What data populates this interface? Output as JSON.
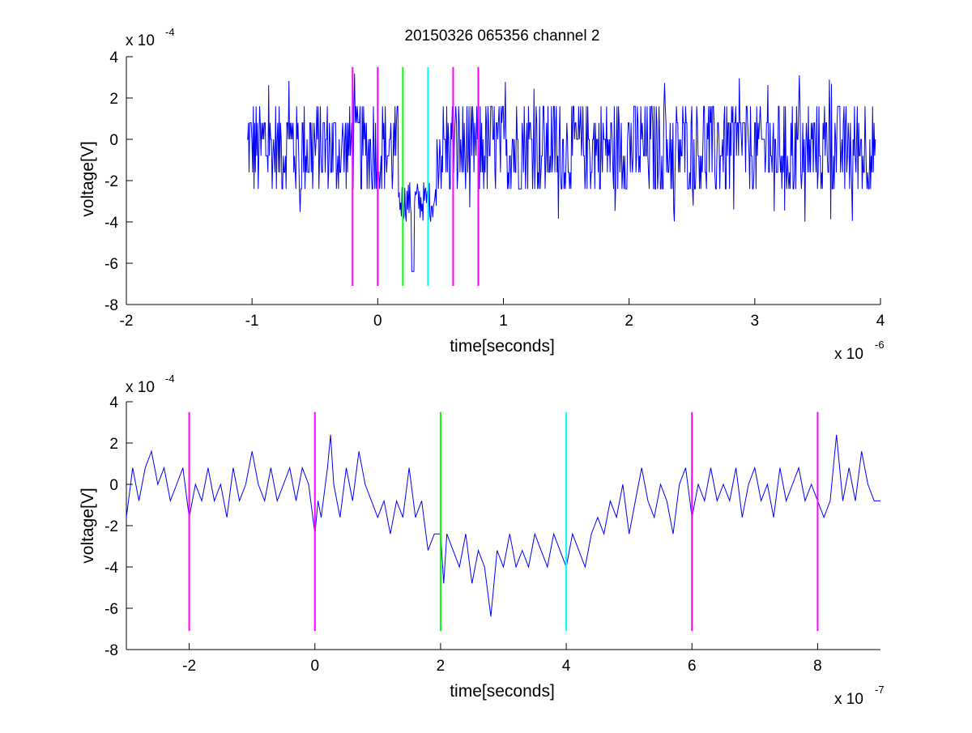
{
  "chart_data": [
    {
      "type": "line",
      "title": "20150326 065356 channel 2",
      "xlabel": "time[seconds]",
      "ylabel": "voltage[V]",
      "x_multiplier": "x 10",
      "x_multiplier_exp": "-6",
      "y_multiplier": "x 10",
      "y_multiplier_exp": "-4",
      "xlim": [
        -2,
        4
      ],
      "ylim": [
        -8,
        4
      ],
      "xticks": [
        "-2",
        "-1",
        "0",
        "1",
        "2",
        "3",
        "4"
      ],
      "yticks": [
        "-8",
        "-6",
        "-4",
        "-2",
        "0",
        "2",
        "4"
      ],
      "grid": false,
      "line_color": "#0000ff",
      "markers": [
        {
          "x": -0.2,
          "color": "#ff00ff",
          "y_range": [
            -7.1,
            3.5
          ]
        },
        {
          "x": 0.0,
          "color": "#ff00ff",
          "y_range": [
            -7.1,
            3.5
          ]
        },
        {
          "x": 0.2,
          "color": "#00ff00",
          "y_range": [
            -7.1,
            3.5
          ]
        },
        {
          "x": 0.4,
          "color": "#00ffff",
          "y_range": [
            -7.1,
            3.5
          ]
        },
        {
          "x": 0.6,
          "color": "#ff00ff",
          "y_range": [
            -7.1,
            3.5
          ]
        },
        {
          "x": 0.8,
          "color": "#ff00ff",
          "y_range": [
            -7.1,
            3.5
          ]
        }
      ],
      "series": [
        {
          "x_range": [
            -1.04,
            3.96
          ],
          "baseline": -0.7,
          "noise_levels": [
            -2.4,
            -1.6,
            -0.8,
            0,
            0.8,
            1.6
          ],
          "dip": {
            "x_range": [
              0.16,
              0.46
            ],
            "level": -3.0,
            "min": -6.4
          }
        }
      ]
    },
    {
      "type": "line",
      "title": "",
      "xlabel": "time[seconds]",
      "ylabel": "voltage[V]",
      "x_multiplier": "x 10",
      "x_multiplier_exp": "-7",
      "y_multiplier": "x 10",
      "y_multiplier_exp": "-4",
      "xlim": [
        -3,
        9
      ],
      "ylim": [
        -8,
        4
      ],
      "xticks": [
        "-2",
        "0",
        "2",
        "4",
        "6",
        "8"
      ],
      "xtick_values": [
        -2,
        0,
        2,
        4,
        6,
        8
      ],
      "yticks": [
        "-8",
        "-6",
        "-4",
        "-2",
        "0",
        "2",
        "4"
      ],
      "grid": false,
      "line_color": "#0000ff",
      "markers": [
        {
          "x": -2,
          "color": "#ff00ff",
          "y_range": [
            -7.1,
            3.5
          ]
        },
        {
          "x": 0,
          "color": "#ff00ff",
          "y_range": [
            -7.1,
            3.5
          ]
        },
        {
          "x": 2,
          "color": "#00ff00",
          "y_range": [
            -7.1,
            3.5
          ]
        },
        {
          "x": 4,
          "color": "#00ffff",
          "y_range": [
            -7.1,
            3.5
          ]
        },
        {
          "x": 6,
          "color": "#ff00ff",
          "y_range": [
            -7.1,
            3.5
          ]
        },
        {
          "x": 8,
          "color": "#ff00ff",
          "y_range": [
            -7.1,
            3.5
          ]
        }
      ],
      "series": [
        {
          "x_range": [
            -3,
            9
          ],
          "points": [
            [
              -3.0,
              -1.6
            ],
            [
              -2.9,
              0.8
            ],
            [
              -2.8,
              -0.8
            ],
            [
              -2.7,
              0.8
            ],
            [
              -2.6,
              1.6
            ],
            [
              -2.5,
              0
            ],
            [
              -2.4,
              0.8
            ],
            [
              -2.3,
              -0.8
            ],
            [
              -2.2,
              0
            ],
            [
              -2.1,
              0.8
            ],
            [
              -2.0,
              -1.6
            ],
            [
              -1.9,
              0
            ],
            [
              -1.8,
              -0.8
            ],
            [
              -1.7,
              0.8
            ],
            [
              -1.6,
              -0.8
            ],
            [
              -1.5,
              0
            ],
            [
              -1.4,
              -1.6
            ],
            [
              -1.3,
              0.8
            ],
            [
              -1.2,
              -0.8
            ],
            [
              -1.1,
              0
            ],
            [
              -1.0,
              1.6
            ],
            [
              -0.9,
              0
            ],
            [
              -0.8,
              -0.8
            ],
            [
              -0.7,
              0.8
            ],
            [
              -0.6,
              -0.8
            ],
            [
              -0.5,
              0
            ],
            [
              -0.4,
              0.8
            ],
            [
              -0.3,
              -0.8
            ],
            [
              -0.2,
              0.8
            ],
            [
              -0.1,
              0
            ],
            [
              0.0,
              -2.4
            ],
            [
              0.05,
              -0.8
            ],
            [
              0.1,
              -1.6
            ],
            [
              0.2,
              0.8
            ],
            [
              0.25,
              2.4
            ],
            [
              0.3,
              0
            ],
            [
              0.4,
              -1.6
            ],
            [
              0.5,
              0.8
            ],
            [
              0.6,
              -0.8
            ],
            [
              0.7,
              1.6
            ],
            [
              0.8,
              0
            ],
            [
              0.9,
              -0.8
            ],
            [
              1.0,
              -1.6
            ],
            [
              1.1,
              -0.8
            ],
            [
              1.2,
              -2.4
            ],
            [
              1.3,
              -0.8
            ],
            [
              1.4,
              -1.6
            ],
            [
              1.5,
              0.8
            ],
            [
              1.6,
              -1.6
            ],
            [
              1.7,
              -0.8
            ],
            [
              1.8,
              -3.2
            ],
            [
              1.9,
              -2.4
            ],
            [
              2.0,
              -2.4
            ],
            [
              2.05,
              -4.8
            ],
            [
              2.1,
              -2.4
            ],
            [
              2.2,
              -3.2
            ],
            [
              2.3,
              -4.0
            ],
            [
              2.4,
              -2.4
            ],
            [
              2.5,
              -4.8
            ],
            [
              2.6,
              -3.2
            ],
            [
              2.7,
              -4.0
            ],
            [
              2.8,
              -6.4
            ],
            [
              2.9,
              -3.2
            ],
            [
              3.0,
              -4.0
            ],
            [
              3.1,
              -2.4
            ],
            [
              3.2,
              -4.0
            ],
            [
              3.3,
              -3.2
            ],
            [
              3.4,
              -4.0
            ],
            [
              3.5,
              -2.4
            ],
            [
              3.6,
              -3.2
            ],
            [
              3.7,
              -4.0
            ],
            [
              3.8,
              -2.4
            ],
            [
              3.9,
              -3.2
            ],
            [
              4.0,
              -4.0
            ],
            [
              4.1,
              -2.4
            ],
            [
              4.2,
              -3.2
            ],
            [
              4.3,
              -4.0
            ],
            [
              4.4,
              -2.4
            ],
            [
              4.5,
              -1.6
            ],
            [
              4.6,
              -2.4
            ],
            [
              4.7,
              -0.8
            ],
            [
              4.8,
              -1.6
            ],
            [
              4.9,
              0
            ],
            [
              5.0,
              -2.4
            ],
            [
              5.1,
              -0.8
            ],
            [
              5.2,
              0.8
            ],
            [
              5.3,
              -0.8
            ],
            [
              5.4,
              -1.6
            ],
            [
              5.5,
              0
            ],
            [
              5.6,
              -0.8
            ],
            [
              5.7,
              -2.4
            ],
            [
              5.8,
              0
            ],
            [
              5.9,
              0.8
            ],
            [
              6.0,
              -1.6
            ],
            [
              6.1,
              0
            ],
            [
              6.2,
              -0.8
            ],
            [
              6.3,
              0.8
            ],
            [
              6.4,
              -0.8
            ],
            [
              6.5,
              0
            ],
            [
              6.6,
              -0.8
            ],
            [
              6.7,
              0.8
            ],
            [
              6.8,
              -1.6
            ],
            [
              6.9,
              0
            ],
            [
              7.0,
              0.8
            ],
            [
              7.1,
              -0.8
            ],
            [
              7.2,
              0
            ],
            [
              7.3,
              -1.6
            ],
            [
              7.4,
              0.8
            ],
            [
              7.5,
              -0.8
            ],
            [
              7.6,
              0
            ],
            [
              7.7,
              0.8
            ],
            [
              7.8,
              -0.8
            ],
            [
              7.9,
              0
            ],
            [
              8.0,
              -0.8
            ],
            [
              8.1,
              -1.6
            ],
            [
              8.2,
              -0.8
            ],
            [
              8.3,
              2.4
            ],
            [
              8.4,
              -0.8
            ],
            [
              8.5,
              0.8
            ],
            [
              8.6,
              -0.8
            ],
            [
              8.7,
              1.6
            ],
            [
              8.8,
              0
            ],
            [
              8.9,
              -0.8
            ],
            [
              9.0,
              -0.8
            ]
          ]
        }
      ]
    }
  ]
}
